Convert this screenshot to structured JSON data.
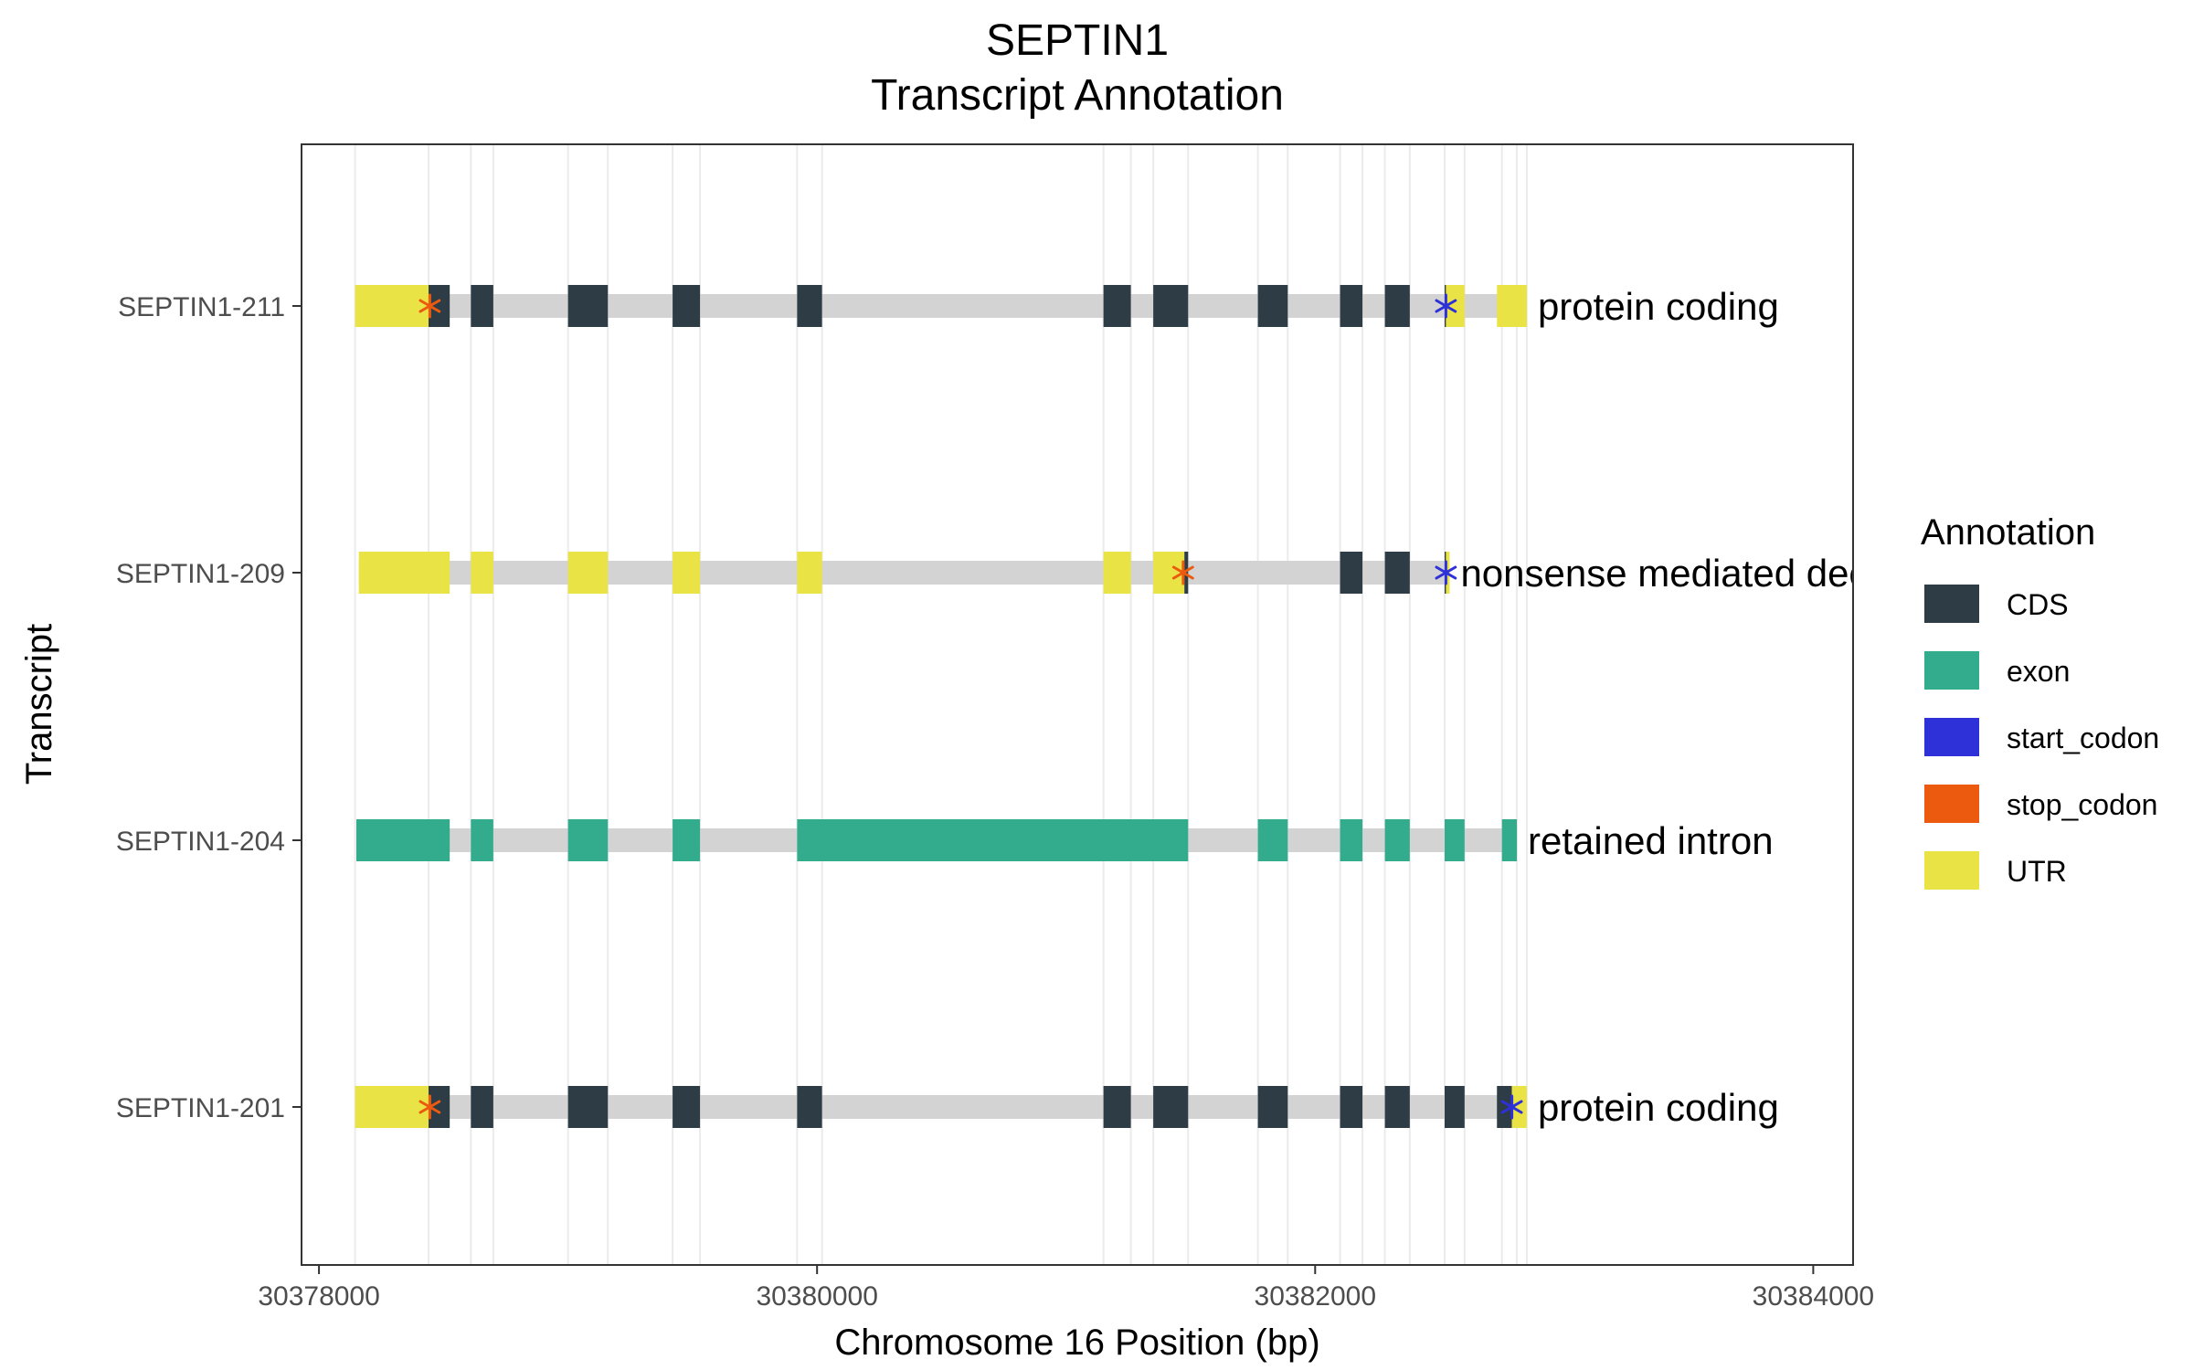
{
  "chart_data": {
    "type": "gene-structure",
    "title": "SEPTIN1",
    "subtitle": "Transcript Annotation",
    "xlabel": "Chromosome 16 Position (bp)",
    "ylabel": "Transcript",
    "xlim": [
      30377930,
      30384160
    ],
    "x_ticks": [
      30378000,
      30380000,
      30382000,
      30384000
    ],
    "x_tick_labels": [
      "30378000",
      "30380000",
      "30382000",
      "30384000"
    ],
    "grid": "vertical minor lines at feature boundaries",
    "legend": {
      "title": "Annotation",
      "position": "right",
      "items": [
        {
          "key": "CDS",
          "label": "CDS",
          "color": "#2e3c45"
        },
        {
          "key": "exon",
          "label": "exon",
          "color": "#33ac8d"
        },
        {
          "key": "start_codon",
          "label": "start_codon",
          "color": "#2e30d8"
        },
        {
          "key": "stop_codon",
          "label": "stop_codon",
          "color": "#ec5a0f"
        },
        {
          "key": "UTR",
          "label": "UTR",
          "color": "#eae345"
        }
      ]
    },
    "intron_color": "#d3d3d3",
    "gridline_positions": [
      30378145,
      30378440,
      30378610,
      30378700,
      30379000,
      30379160,
      30379420,
      30379530,
      30379920,
      30380020,
      30381150,
      30381260,
      30381350,
      30381490,
      30381770,
      30381890,
      30382100,
      30382190,
      30382280,
      30382380,
      30382520,
      30382600,
      30382750,
      30382810,
      30382850
    ],
    "transcripts": [
      {
        "name": "SEPTIN1-211",
        "biotype": "protein coding",
        "start": 30378145,
        "end": 30382850,
        "features": [
          {
            "type": "UTR",
            "start": 30378145,
            "end": 30378440
          },
          {
            "type": "CDS",
            "start": 30378440,
            "end": 30378525
          },
          {
            "type": "CDS",
            "start": 30378610,
            "end": 30378700
          },
          {
            "type": "CDS",
            "start": 30379000,
            "end": 30379160
          },
          {
            "type": "CDS",
            "start": 30379420,
            "end": 30379530
          },
          {
            "type": "CDS",
            "start": 30379920,
            "end": 30380020
          },
          {
            "type": "CDS",
            "start": 30381150,
            "end": 30381260
          },
          {
            "type": "CDS",
            "start": 30381350,
            "end": 30381490
          },
          {
            "type": "CDS",
            "start": 30381770,
            "end": 30381890
          },
          {
            "type": "CDS",
            "start": 30382100,
            "end": 30382190
          },
          {
            "type": "CDS",
            "start": 30382280,
            "end": 30382380
          },
          {
            "type": "CDS",
            "start": 30382520,
            "end": 30382525
          },
          {
            "type": "UTR",
            "start": 30382525,
            "end": 30382600
          },
          {
            "type": "UTR",
            "start": 30382730,
            "end": 30382850
          }
        ],
        "start_codon": 30382525,
        "stop_codon": 30378445
      },
      {
        "name": "SEPTIN1-209",
        "biotype": "nonsense mediated decay",
        "start": 30378160,
        "end": 30382540,
        "features": [
          {
            "type": "UTR",
            "start": 30378160,
            "end": 30378525
          },
          {
            "type": "UTR",
            "start": 30378610,
            "end": 30378700
          },
          {
            "type": "UTR",
            "start": 30379000,
            "end": 30379160
          },
          {
            "type": "UTR",
            "start": 30379420,
            "end": 30379530
          },
          {
            "type": "UTR",
            "start": 30379920,
            "end": 30380020
          },
          {
            "type": "UTR",
            "start": 30381150,
            "end": 30381260
          },
          {
            "type": "UTR",
            "start": 30381350,
            "end": 30381475
          },
          {
            "type": "CDS",
            "start": 30381475,
            "end": 30381490
          },
          {
            "type": "CDS",
            "start": 30382100,
            "end": 30382190
          },
          {
            "type": "CDS",
            "start": 30382280,
            "end": 30382380
          },
          {
            "type": "CDS",
            "start": 30382520,
            "end": 30382525
          },
          {
            "type": "UTR",
            "start": 30382525,
            "end": 30382540
          }
        ],
        "start_codon": 30382525,
        "stop_codon": 30381470
      },
      {
        "name": "SEPTIN1-204",
        "biotype": "retained intron",
        "start": 30378150,
        "end": 30382810,
        "features": [
          {
            "type": "exon",
            "start": 30378150,
            "end": 30378525
          },
          {
            "type": "exon",
            "start": 30378610,
            "end": 30378700
          },
          {
            "type": "exon",
            "start": 30379000,
            "end": 30379160
          },
          {
            "type": "exon",
            "start": 30379420,
            "end": 30379530
          },
          {
            "type": "exon",
            "start": 30379920,
            "end": 30381490
          },
          {
            "type": "exon",
            "start": 30381770,
            "end": 30381890
          },
          {
            "type": "exon",
            "start": 30382100,
            "end": 30382190
          },
          {
            "type": "exon",
            "start": 30382280,
            "end": 30382380
          },
          {
            "type": "exon",
            "start": 30382520,
            "end": 30382600
          },
          {
            "type": "exon",
            "start": 30382750,
            "end": 30382810
          }
        ],
        "start_codon": null,
        "stop_codon": null
      },
      {
        "name": "SEPTIN1-201",
        "biotype": "protein coding",
        "start": 30378145,
        "end": 30382850,
        "features": [
          {
            "type": "UTR",
            "start": 30378145,
            "end": 30378440
          },
          {
            "type": "CDS",
            "start": 30378440,
            "end": 30378525
          },
          {
            "type": "CDS",
            "start": 30378610,
            "end": 30378700
          },
          {
            "type": "CDS",
            "start": 30379000,
            "end": 30379160
          },
          {
            "type": "CDS",
            "start": 30379420,
            "end": 30379530
          },
          {
            "type": "CDS",
            "start": 30379920,
            "end": 30380020
          },
          {
            "type": "CDS",
            "start": 30381150,
            "end": 30381260
          },
          {
            "type": "CDS",
            "start": 30381350,
            "end": 30381490
          },
          {
            "type": "CDS",
            "start": 30381770,
            "end": 30381890
          },
          {
            "type": "CDS",
            "start": 30382100,
            "end": 30382190
          },
          {
            "type": "CDS",
            "start": 30382280,
            "end": 30382380
          },
          {
            "type": "CDS",
            "start": 30382520,
            "end": 30382600
          },
          {
            "type": "CDS",
            "start": 30382730,
            "end": 30382790
          },
          {
            "type": "UTR",
            "start": 30382790,
            "end": 30382850
          }
        ],
        "start_codon": 30382790,
        "stop_codon": 30378445
      }
    ]
  }
}
